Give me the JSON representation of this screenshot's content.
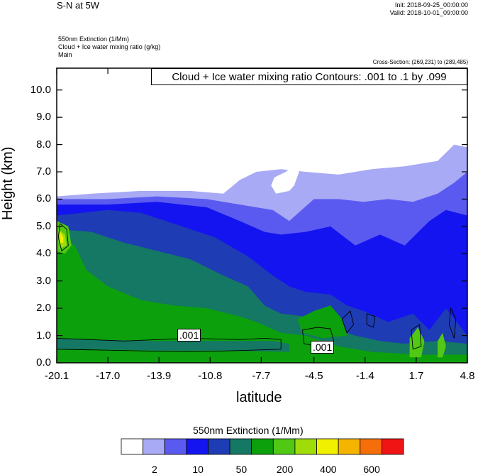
{
  "header": {
    "title": "S-N at 5W",
    "init": "Init: 2018-09-25_00:00:00",
    "valid": "Valid: 2018-10-01_09:00:00",
    "field1": "550nm Extinction   (1/Mm)",
    "field2": "Cloud + Ice water mixing ratio   (g/kg)",
    "field3": "Main",
    "cross_section": "Cross-Section: (269,231) to (289,485)",
    "contour_label": "Cloud + Ice water mixing ratio Contours: .001 to .1 by .099"
  },
  "chart_data": {
    "type": "heatmap",
    "title": "S-N at 5W",
    "xlabel": "latitude",
    "ylabel": "Height (km)",
    "x_ticks": [
      "-20.1",
      "-17.0",
      "-13.9",
      "-10.8",
      "-7.7",
      "-4.5",
      "-1.4",
      "1.7",
      "4.8"
    ],
    "x_tick_values": [
      -20.1,
      -17.0,
      -13.9,
      -10.8,
      -7.7,
      -4.5,
      -1.4,
      1.7,
      4.8
    ],
    "y_ticks": [
      "0.0",
      "1.0",
      "2.0",
      "3.0",
      "4.0",
      "5.0",
      "6.0",
      "7.0",
      "8.0",
      "9.0",
      "10.0"
    ],
    "y_tick_values": [
      0,
      1,
      2,
      3,
      4,
      5,
      6,
      7,
      8,
      9,
      10
    ],
    "xlim": [
      -20.1,
      4.8
    ],
    "ylim": [
      0,
      10.8
    ],
    "colorbar": {
      "title": "550nm Extinction  (1/Mm)",
      "labels": [
        "2",
        "10",
        "50",
        "200",
        "400",
        "600"
      ],
      "colors": [
        "#ffffff",
        "#a8aaf5",
        "#5a5af0",
        "#1414f0",
        "#1e3cb4",
        "#147864",
        "#0ca00c",
        "#50c814",
        "#a0dc0a",
        "#f0f000",
        "#f5b400",
        "#f56e0a",
        "#f01414"
      ]
    },
    "contour_labels": [
      ".001",
      ".001"
    ]
  }
}
